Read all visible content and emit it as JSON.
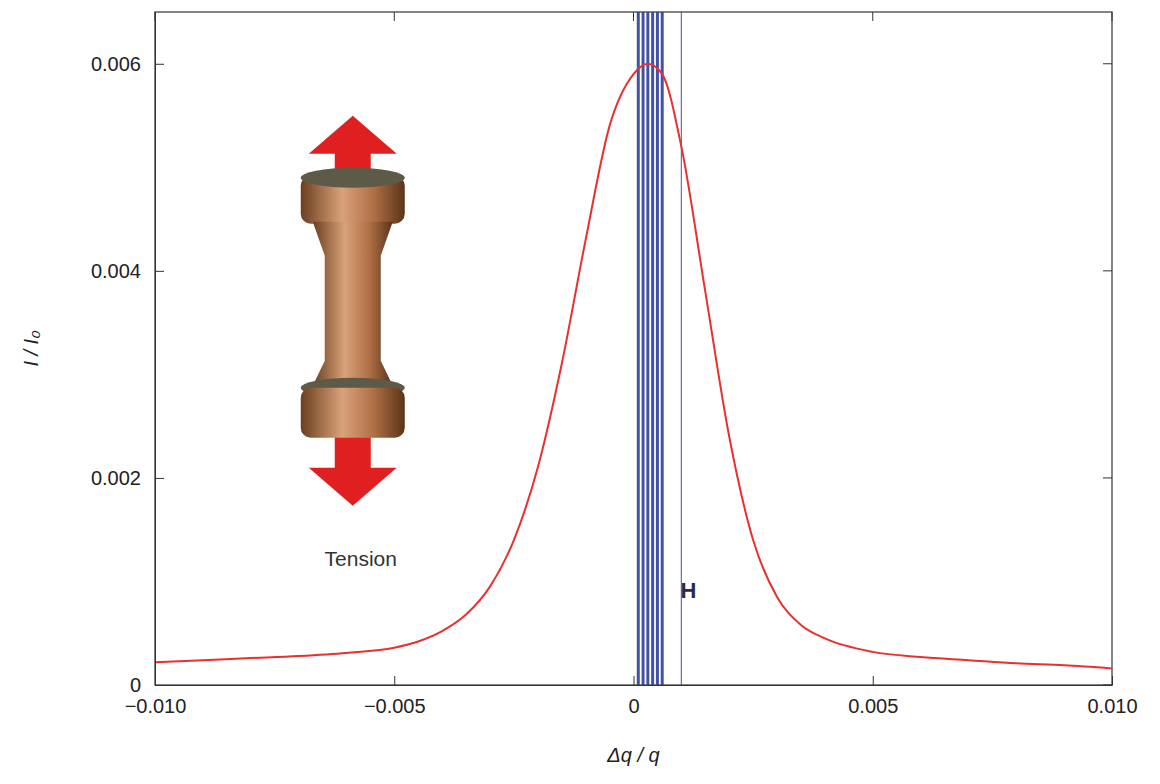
{
  "chart_data": {
    "type": "line",
    "x_label": "Δq / q",
    "y_label": "I / I₀",
    "x": [
      -0.01,
      -0.009,
      -0.008,
      -0.007,
      -0.006,
      -0.005,
      -0.0045,
      -0.004,
      -0.0035,
      -0.003,
      -0.0025,
      -0.002,
      -0.0015,
      -0.001,
      -0.0005,
      0,
      0.0003,
      0.0006,
      0.001,
      0.0015,
      0.002,
      0.0025,
      0.003,
      0.0035,
      0.004,
      0.005,
      0.006,
      0.007,
      0.008,
      0.009,
      0.01
    ],
    "series": [
      {
        "color": "#e8312f",
        "line_style": "solid",
        "values": [
          0.00022,
          0.00024,
          0.00026,
          0.00028,
          0.00031,
          0.00036,
          0.00042,
          0.00052,
          0.00068,
          0.00095,
          0.0014,
          0.0021,
          0.0031,
          0.0043,
          0.0054,
          0.0059,
          0.006,
          0.0059,
          0.0052,
          0.0038,
          0.0024,
          0.0014,
          0.00085,
          0.00058,
          0.00045,
          0.00032,
          0.00027,
          0.00024,
          0.00021,
          0.00019,
          0.00016
        ]
      }
    ],
    "vlines": {
      "color": "#2e3f99",
      "x": [
        0.0001,
        0.0002,
        0.0003,
        0.0004,
        0.0005,
        0.0006,
        0.001
      ]
    },
    "annotations": [
      {
        "text": "H",
        "x": 0.00115,
        "y": 0.0009
      },
      {
        "text": "Tension",
        "x": -0.0057,
        "y": 0.0012
      }
    ],
    "xlim": [
      -0.01,
      0.01
    ],
    "xticks": [
      {
        "value": -0.01,
        "label": "−0.010"
      },
      {
        "value": -0.005,
        "label": "−0.005"
      },
      0,
      0.005,
      {
        "value": 0.01,
        "label": "0.010"
      }
    ],
    "ylim": [
      0,
      0.0065
    ],
    "yticks": [
      0,
      0.002,
      0.004,
      0.006
    ],
    "grid": false
  }
}
